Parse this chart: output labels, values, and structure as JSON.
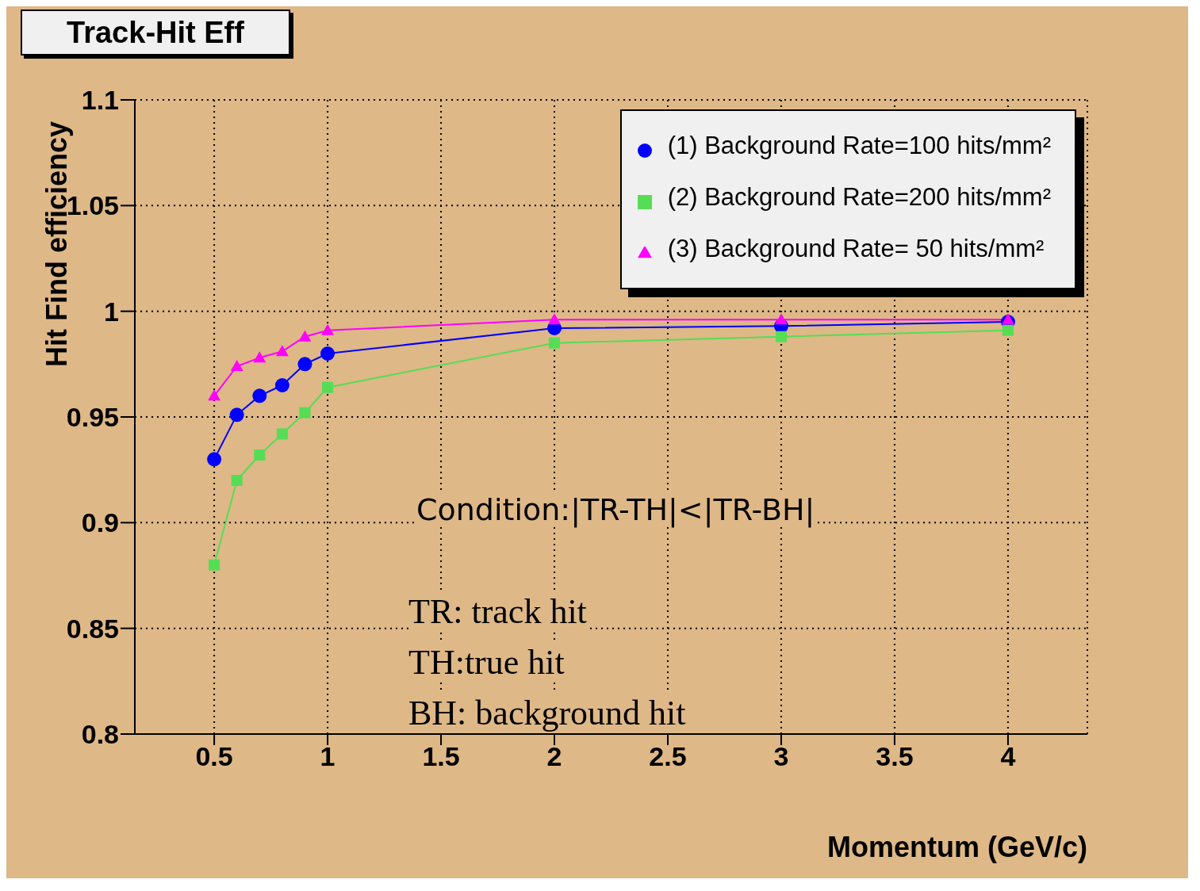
{
  "chart_data": {
    "type": "line",
    "title": "Track-Hit Eff",
    "xlabel": "Momentum (GeV/c)",
    "ylabel": "Hit Find efficiency",
    "x": [
      0.5,
      0.6,
      0.7,
      0.8,
      0.9,
      1,
      2,
      3,
      4
    ],
    "series": [
      {
        "name": "(1) Background Rate=100 hits/mm²",
        "color": "#0000ff",
        "marker": "circle",
        "values": [
          0.93,
          0.951,
          0.96,
          0.965,
          0.975,
          0.98,
          0.992,
          0.993,
          0.995
        ]
      },
      {
        "name": "(2) Background Rate=200 hits/mm²",
        "color": "#55dd55",
        "marker": "square",
        "values": [
          0.88,
          0.92,
          0.932,
          0.942,
          0.952,
          0.964,
          0.985,
          0.988,
          0.991
        ]
      },
      {
        "name": "(3) Background Rate= 50 hits/mm²",
        "color": "#ff00ff",
        "marker": "triangle",
        "values": [
          0.96,
          0.974,
          0.978,
          0.981,
          0.988,
          0.991,
          0.996,
          0.996,
          0.996
        ]
      }
    ],
    "xlim": [
      0.15,
      4.35
    ],
    "xticks": [
      0.5,
      1,
      1.5,
      2,
      2.5,
      3,
      3.5,
      4
    ],
    "ylim": [
      0.8,
      1.1
    ],
    "yticks": [
      0.8,
      0.85,
      0.9,
      0.95,
      1,
      1.05,
      1.1
    ],
    "grid": true,
    "legend": "top right",
    "annotations": [
      "Condition:|TR-TH|<|TR-BH|",
      "TR: track hit",
      "TH:true hit",
      "BH: background hit"
    ]
  }
}
